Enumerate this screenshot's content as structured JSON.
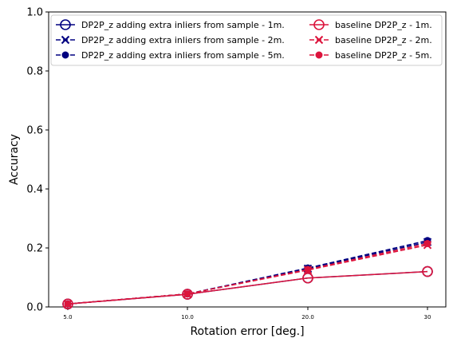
{
  "chart_data": {
    "type": "line",
    "xlabel": "Rotation error [deg.]",
    "ylabel": "Accuracy",
    "categories": [
      "5.0",
      "10.0",
      "20.0",
      "30"
    ],
    "ylim": [
      0,
      1.0
    ],
    "yticks": [
      "0.0",
      "0.2",
      "0.4",
      "0.6",
      "0.8",
      "1.0"
    ],
    "grid": false,
    "legend_position": "top",
    "series": [
      {
        "name": "DP2P_z adding extra inliers from sample - 1m.",
        "values": [
          0.01,
          0.043,
          0.098,
          0.12
        ],
        "color": "#000080",
        "marker": "open-circle",
        "dash": "solid"
      },
      {
        "name": "DP2P_z adding extra inliers from sample - 2m.",
        "values": [
          0.01,
          0.044,
          0.13,
          0.22
        ],
        "color": "#000080",
        "marker": "x",
        "dash": "dashed"
      },
      {
        "name": "DP2P_z adding extra inliers from sample - 5m.",
        "values": [
          0.01,
          0.044,
          0.132,
          0.225
        ],
        "color": "#000080",
        "marker": "filled-circle",
        "dash": "dashed"
      },
      {
        "name": "baseline DP2P_z - 1m.",
        "values": [
          0.01,
          0.043,
          0.098,
          0.12
        ],
        "color": "#dc143c",
        "marker": "open-circle",
        "dash": "solid"
      },
      {
        "name": "baseline DP2P_z - 2m.",
        "values": [
          0.01,
          0.044,
          0.125,
          0.21
        ],
        "color": "#dc143c",
        "marker": "x",
        "dash": "dashed"
      },
      {
        "name": "baseline DP2P_z - 5m.",
        "values": [
          0.01,
          0.044,
          0.127,
          0.215
        ],
        "color": "#dc143c",
        "marker": "filled-circle",
        "dash": "dashed"
      }
    ]
  }
}
